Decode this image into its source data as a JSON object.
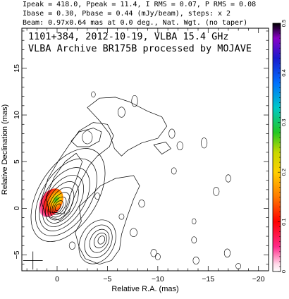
{
  "header": {
    "line1": "Ipeak = 418.0, Ppeak = 11.4, I RMS = 0.07, P RMS = 0.08",
    "line2": "Ibase = 0.30, Pbase = 0.44 (mJy/beam), steps: x 2",
    "line3": "Beam: 0.97x0.64 mas at 0.0 deg., Nat. Wgt. (no taper)"
  },
  "chart_data": {
    "type": "contour",
    "title": "1101+384, 2012-10-19, VLBA 15.4 GHz",
    "subtitle": "VLBA Archive BR175B processed by MOJAVE",
    "xlabel": "Relative R.A. (mas)",
    "ylabel": "Relative Declination (mas)",
    "xlim": [
      3.5,
      -21
    ],
    "ylim": [
      -6.7,
      19.3
    ],
    "xticks": [
      0,
      -5,
      -10,
      -15,
      -20
    ],
    "yticks": [
      -5,
      0,
      5,
      10,
      15
    ],
    "xtick_labels": [
      "0",
      "−5",
      "−10",
      "−15",
      "−20"
    ],
    "ytick_labels": [
      "−5",
      "0",
      "5",
      "10",
      "15"
    ],
    "colorbar": {
      "range": [
        0,
        0.5
      ],
      "ticks": [
        0,
        0.1,
        0.2,
        0.3,
        0.4,
        0.5
      ],
      "tick_labels": [
        "0",
        "0.1",
        "0.2",
        "0.3",
        "0.4",
        "0.5"
      ]
    },
    "core": {
      "x": 0,
      "y": 0,
      "levels": [
        0.35,
        0.6,
        0.9,
        1.25,
        1.65,
        2.1,
        2.6,
        3.2,
        3.9,
        4.7
      ]
    },
    "beam": {
      "x": 2.4,
      "y": -5.6,
      "major": 0.97,
      "minor": 0.64,
      "pa": 0
    },
    "polarization_region": {
      "x": 0.6,
      "y": 0.6,
      "max_fraction": 0.5
    },
    "components": [
      {
        "x": -4.0,
        "y": -3.6
      },
      {
        "x": -3.0,
        "y": 7.6
      }
    ]
  }
}
